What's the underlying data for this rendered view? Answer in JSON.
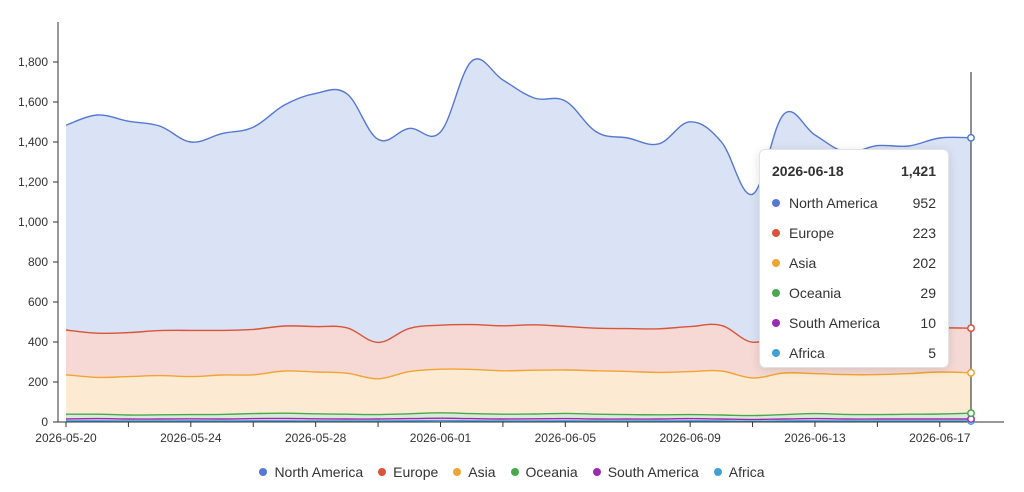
{
  "chart_data": {
    "type": "area",
    "stacked": true,
    "x": [
      "2026-05-20",
      "2026-05-21",
      "2026-05-22",
      "2026-05-23",
      "2026-05-24",
      "2026-05-25",
      "2026-05-26",
      "2026-05-27",
      "2026-05-28",
      "2026-05-29",
      "2026-05-30",
      "2026-05-31",
      "2026-06-01",
      "2026-06-02",
      "2026-06-03",
      "2026-06-04",
      "2026-06-05",
      "2026-06-06",
      "2026-06-07",
      "2026-06-08",
      "2026-06-09",
      "2026-06-10",
      "2026-06-11",
      "2026-06-12",
      "2026-06-13",
      "2026-06-14",
      "2026-06-15",
      "2026-06-16",
      "2026-06-17",
      "2026-06-18"
    ],
    "x_tick_labels": [
      "2026-05-20",
      "2026-05-24",
      "2026-05-28",
      "2026-06-01",
      "2026-06-05",
      "2026-06-09",
      "2026-06-13",
      "2026-06-17"
    ],
    "x_tick_dates": [
      "2026-05-20",
      "2026-05-22",
      "2026-05-24",
      "2026-05-26",
      "2026-05-28",
      "2026-05-30",
      "2026-06-01",
      "2026-06-03",
      "2026-06-05",
      "2026-06-07",
      "2026-06-09",
      "2026-06-11",
      "2026-06-13",
      "2026-06-15",
      "2026-06-17"
    ],
    "ylim": [
      0,
      1900
    ],
    "y_ticks": [
      0,
      200,
      400,
      600,
      800,
      1000,
      1200,
      1400,
      1600,
      1800
    ],
    "y_tick_labels": [
      "0",
      "200",
      "400",
      "600",
      "800",
      "1,000",
      "1,200",
      "1,400",
      "1,600",
      "1,800"
    ],
    "grid": false,
    "legend_position": "bottom",
    "series": [
      {
        "name": "Africa",
        "color": "#3fa0d6",
        "values": [
          5,
          6,
          5,
          5,
          6,
          5,
          6,
          6,
          5,
          5,
          5,
          6,
          7,
          6,
          5,
          5,
          6,
          5,
          5,
          5,
          6,
          5,
          4,
          5,
          6,
          5,
          5,
          5,
          5,
          5
        ]
      },
      {
        "name": "South America",
        "color": "#9c2bb0",
        "values": [
          10,
          11,
          10,
          10,
          10,
          10,
          11,
          12,
          11,
          10,
          10,
          11,
          12,
          11,
          10,
          11,
          11,
          10,
          10,
          10,
          11,
          10,
          9,
          10,
          11,
          10,
          10,
          10,
          10,
          10
        ]
      },
      {
        "name": "Oceania",
        "color": "#4aa84c",
        "values": [
          24,
          22,
          20,
          21,
          21,
          23,
          25,
          26,
          25,
          24,
          22,
          24,
          27,
          25,
          24,
          24,
          26,
          24,
          22,
          21,
          20,
          20,
          19,
          22,
          25,
          23,
          22,
          24,
          25,
          29
        ]
      },
      {
        "name": "Asia",
        "color": "#f0a433",
        "values": [
          197,
          184,
          192,
          196,
          190,
          197,
          194,
          211,
          209,
          205,
          179,
          211,
          218,
          221,
          217,
          219,
          217,
          217,
          216,
          212,
          215,
          220,
          188,
          208,
          200,
          199,
          200,
          203,
          210,
          202
        ]
      },
      {
        "name": "Europe",
        "color": "#d8543a",
        "values": [
          224,
          221,
          220,
          225,
          231,
          223,
          227,
          225,
          227,
          227,
          182,
          216,
          220,
          224,
          225,
          227,
          218,
          213,
          214,
          218,
          225,
          228,
          179,
          205,
          213,
          216,
          218,
          217,
          220,
          223
        ]
      },
      {
        "name": "North America",
        "color": "#5579d2",
        "values": [
          1024,
          1091,
          1057,
          1023,
          942,
          984,
          1011,
          1105,
          1166,
          1170,
          1015,
          1000,
          966,
          1317,
          1229,
          1134,
          1127,
          981,
          953,
          925,
          1024,
          918,
          740,
          1089,
          980,
          897,
          927,
          921,
          950,
          952
        ]
      }
    ],
    "hover": {
      "date": "2026-06-18",
      "total": "1,421"
    }
  },
  "tooltip": {
    "date": "2026-06-18",
    "total": "1,421",
    "rows": [
      {
        "name": "North America",
        "value": "952",
        "color": "#5579d2"
      },
      {
        "name": "Europe",
        "value": "223",
        "color": "#d8543a"
      },
      {
        "name": "Asia",
        "value": "202",
        "color": "#f0a433"
      },
      {
        "name": "Oceania",
        "value": "29",
        "color": "#4aa84c"
      },
      {
        "name": "South America",
        "value": "10",
        "color": "#9c2bb0"
      },
      {
        "name": "Africa",
        "value": "5",
        "color": "#3fa0d6"
      }
    ]
  },
  "legend": {
    "items": [
      {
        "name": "North America",
        "color": "#5579d2"
      },
      {
        "name": "Europe",
        "color": "#d8543a"
      },
      {
        "name": "Asia",
        "color": "#f0a433"
      },
      {
        "name": "Oceania",
        "color": "#4aa84c"
      },
      {
        "name": "South America",
        "color": "#9c2bb0"
      },
      {
        "name": "Africa",
        "color": "#3fa0d6"
      }
    ]
  }
}
